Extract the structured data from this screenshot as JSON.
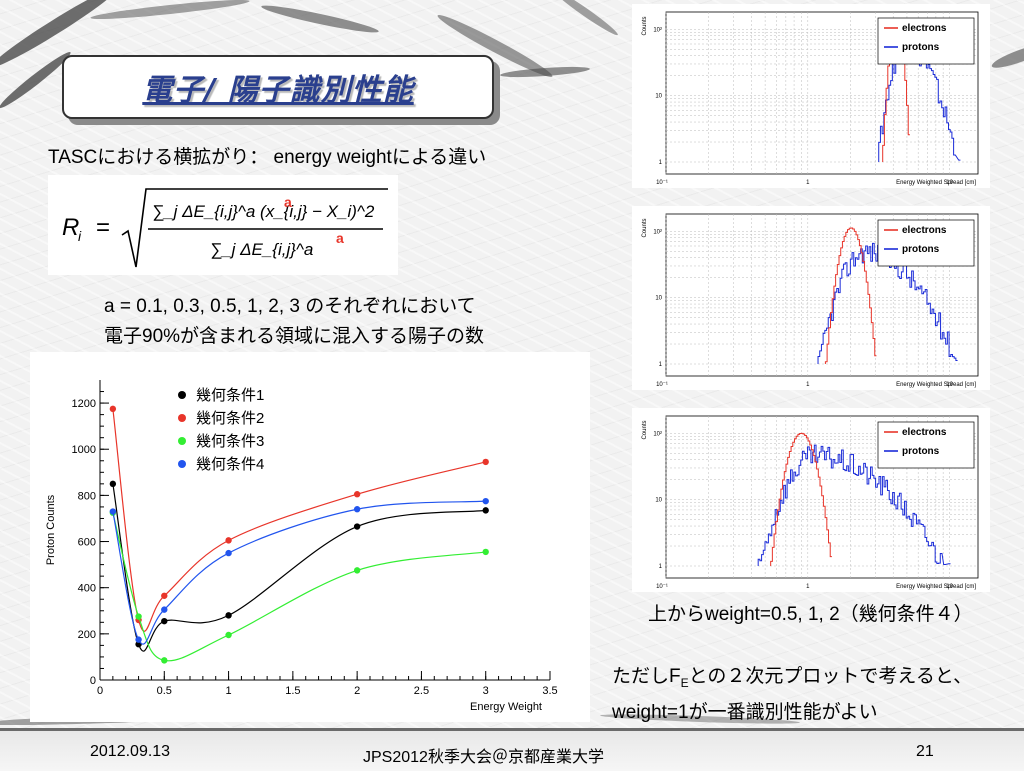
{
  "slide": {
    "title": "電子/ 陽子識別性能",
    "subtitle_line": "TASCにおける横拡がり：  energy weightによる違い",
    "description_line1": "a = 0.1, 0.3, 0.5, 1, 2, 3 のそれぞれにおいて",
    "description_line2": "電子90%が含まれる領域に混入する陽子の数",
    "caption": "上からweight=0.5, 1, 2（幾何条件４）",
    "note_prefix": "ただしF",
    "note_sub": "E",
    "note_rest": "との２次元プロットで考えると、",
    "note_line2": "weight=1が一番識別性能がよい"
  },
  "formula": {
    "lhs": "R",
    "lhs_sub": "i",
    "equals": "=",
    "numerator": "∑_j ΔE_{i,j}^a (x_{i,j} − X_i)^2",
    "denominator": "∑_j ΔE_{i,j}^a",
    "exponent_marker": "a",
    "marker_color": "#e8352a"
  },
  "footer": {
    "date": "2012.09.13",
    "conference": "JPS2012秋季大会＠京都産業大学",
    "page": "21"
  },
  "chart_data": [
    {
      "type": "line",
      "xlabel": "Energy Weight",
      "ylabel": "Proton Counts",
      "xlim": [
        0,
        3.5
      ],
      "ylim": [
        0,
        1300
      ],
      "x_ticks": [
        "0",
        "0.5",
        "1",
        "1.5",
        "2",
        "2.5",
        "3",
        "3.5"
      ],
      "y_ticks": [
        "0",
        "200",
        "400",
        "600",
        "800",
        "1000",
        "1200"
      ],
      "x": [
        0.1,
        0.3,
        0.5,
        1,
        2,
        3
      ],
      "series": [
        {
          "name": "幾何条件1",
          "color": "#000000",
          "values": [
            850,
            155,
            255,
            280,
            665,
            735
          ]
        },
        {
          "name": "幾何条件2",
          "color": "#e8352a",
          "values": [
            1175,
            260,
            365,
            605,
            805,
            945
          ]
        },
        {
          "name": "幾何条件3",
          "color": "#33ee33",
          "values": [
            725,
            275,
            85,
            195,
            475,
            555
          ]
        },
        {
          "name": "幾何条件4",
          "color": "#2255ee",
          "values": [
            730,
            175,
            305,
            550,
            740,
            775
          ]
        }
      ],
      "legend_position": "top-center"
    },
    {
      "type": "line",
      "ylabel": "Counts",
      "xlabel": "Energy Weighted Spread [cm]",
      "x_scale": "log",
      "y_scale": "log",
      "x_ticks": [
        "10⁻¹",
        "1",
        "10"
      ],
      "y_ticks": [
        "1",
        "10",
        "10²"
      ],
      "series": [
        {
          "name": "electrons",
          "color": "#e8352a"
        },
        {
          "name": "protons",
          "color": "#1a2bd8"
        }
      ],
      "legend_position": "top-right"
    },
    {
      "type": "line",
      "ylabel": "Counts",
      "xlabel": "Energy Weighted Spread [cm]",
      "x_scale": "log",
      "y_scale": "log",
      "x_ticks": [
        "10⁻¹",
        "1",
        "10"
      ],
      "y_ticks": [
        "1",
        "10",
        "10²"
      ],
      "series": [
        {
          "name": "electrons",
          "color": "#e8352a"
        },
        {
          "name": "protons",
          "color": "#1a2bd8"
        }
      ],
      "legend_position": "top-right"
    },
    {
      "type": "line",
      "ylabel": "Counts",
      "xlabel": "Energy Weighted Spread [cm]",
      "x_scale": "log",
      "y_scale": "log",
      "x_ticks": [
        "10⁻¹",
        "1",
        "10"
      ],
      "y_ticks": [
        "1",
        "10",
        "10²"
      ],
      "series": [
        {
          "name": "electrons",
          "color": "#e8352a"
        },
        {
          "name": "protons",
          "color": "#1a2bd8"
        }
      ],
      "legend_position": "top-right"
    }
  ]
}
